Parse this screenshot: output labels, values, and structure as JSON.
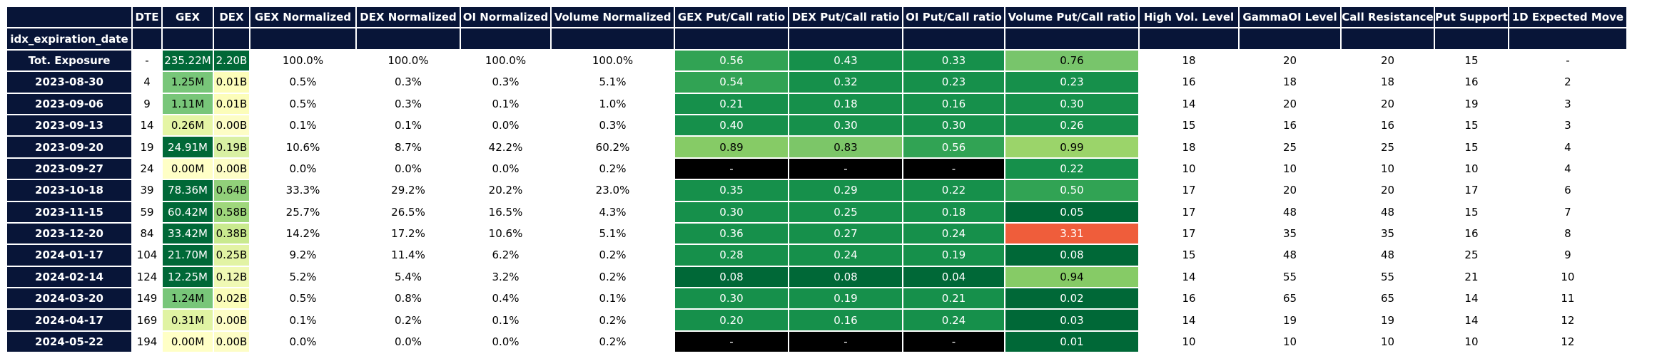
{
  "index_label": "idx_expiration_date",
  "columns": [
    "DTE",
    "GEX",
    "DEX",
    "GEX Normalized",
    "DEX Normalized",
    "OI Normalized",
    "Volume Normalized",
    "GEX Put/Call ratio",
    "DEX Put/Call ratio",
    "OI Put/Call ratio",
    "Volume Put/Call ratio",
    "High Vol. Level",
    "GammaOI Level",
    "Call Resistance",
    "Put Support",
    "1D Expected Move"
  ],
  "rows": [
    {
      "label": "Tot. Exposure",
      "cells": [
        "-",
        "235.22M",
        "2.20B",
        "100.0%",
        "100.0%",
        "100.0%",
        "100.0%",
        "0.56",
        "0.43",
        "0.33",
        "0.76",
        "18",
        "20",
        "20",
        "15",
        "-"
      ],
      "bg": [
        "#ffffff",
        "#006837",
        "#006837",
        "#ffffff",
        "#ffffff",
        "#ffffff",
        "#ffffff",
        "#31a354",
        "#16904b",
        "#16904b",
        "#78c56b",
        "#ffffff",
        "#ffffff",
        "#ffffff",
        "#ffffff",
        "#ffffff"
      ]
    },
    {
      "label": "2023-08-30",
      "cells": [
        "4",
        "1.25M",
        "0.01B",
        "0.5%",
        "0.3%",
        "0.3%",
        "5.1%",
        "0.54",
        "0.32",
        "0.23",
        "0.23",
        "16",
        "18",
        "18",
        "16",
        "2"
      ],
      "bg": [
        "#ffffff",
        "#78c679",
        "#fcfdba",
        "#ffffff",
        "#ffffff",
        "#ffffff",
        "#ffffff",
        "#31a354",
        "#16904b",
        "#16904b",
        "#16904b",
        "#ffffff",
        "#ffffff",
        "#ffffff",
        "#ffffff",
        "#ffffff"
      ]
    },
    {
      "label": "2023-09-06",
      "cells": [
        "9",
        "1.11M",
        "0.01B",
        "0.5%",
        "0.3%",
        "0.1%",
        "1.0%",
        "0.21",
        "0.18",
        "0.16",
        "0.30",
        "14",
        "20",
        "20",
        "19",
        "3"
      ],
      "bg": [
        "#ffffff",
        "#78c679",
        "#fcfdba",
        "#ffffff",
        "#ffffff",
        "#ffffff",
        "#ffffff",
        "#16904b",
        "#16904b",
        "#16904b",
        "#16904b",
        "#ffffff",
        "#ffffff",
        "#ffffff",
        "#ffffff",
        "#ffffff"
      ]
    },
    {
      "label": "2023-09-13",
      "cells": [
        "14",
        "0.26M",
        "0.00B",
        "0.1%",
        "0.1%",
        "0.0%",
        "0.3%",
        "0.40",
        "0.30",
        "0.30",
        "0.26",
        "15",
        "16",
        "16",
        "15",
        "3"
      ],
      "bg": [
        "#ffffff",
        "#e5f5a5",
        "#fdfdc6",
        "#ffffff",
        "#ffffff",
        "#ffffff",
        "#ffffff",
        "#16904b",
        "#16904b",
        "#16904b",
        "#16904b",
        "#ffffff",
        "#ffffff",
        "#ffffff",
        "#ffffff",
        "#ffffff"
      ]
    },
    {
      "label": "2023-09-20",
      "cells": [
        "19",
        "24.91M",
        "0.19B",
        "10.6%",
        "8.7%",
        "42.2%",
        "60.2%",
        "0.89",
        "0.83",
        "0.56",
        "0.99",
        "18",
        "25",
        "25",
        "15",
        "4"
      ],
      "bg": [
        "#ffffff",
        "#006837",
        "#d9f0a3",
        "#ffffff",
        "#ffffff",
        "#ffffff",
        "#ffffff",
        "#86cb66",
        "#7cc668",
        "#31a354",
        "#9bd46a",
        "#ffffff",
        "#ffffff",
        "#ffffff",
        "#ffffff",
        "#ffffff"
      ]
    },
    {
      "label": "2023-09-27",
      "cells": [
        "24",
        "0.00M",
        "0.00B",
        "0.0%",
        "0.0%",
        "0.0%",
        "0.2%",
        "-",
        "-",
        "-",
        "0.22",
        "10",
        "10",
        "10",
        "10",
        "4"
      ],
      "bg": [
        "#ffffff",
        "#ffffc6",
        "#fdfdc6",
        "#ffffff",
        "#ffffff",
        "#ffffff",
        "#ffffff",
        "#000000",
        "#000000",
        "#000000",
        "#16904b",
        "#ffffff",
        "#ffffff",
        "#ffffff",
        "#ffffff",
        "#ffffff"
      ]
    },
    {
      "label": "2023-10-18",
      "cells": [
        "39",
        "78.36M",
        "0.64B",
        "33.3%",
        "29.2%",
        "20.2%",
        "23.0%",
        "0.35",
        "0.29",
        "0.22",
        "0.50",
        "17",
        "20",
        "20",
        "17",
        "6"
      ],
      "bg": [
        "#ffffff",
        "#006837",
        "#91d07a",
        "#ffffff",
        "#ffffff",
        "#ffffff",
        "#ffffff",
        "#16904b",
        "#16904b",
        "#16904b",
        "#31a354",
        "#ffffff",
        "#ffffff",
        "#ffffff",
        "#ffffff",
        "#ffffff"
      ]
    },
    {
      "label": "2023-11-15",
      "cells": [
        "59",
        "60.42M",
        "0.58B",
        "25.7%",
        "26.5%",
        "16.5%",
        "4.3%",
        "0.30",
        "0.25",
        "0.18",
        "0.05",
        "17",
        "48",
        "48",
        "15",
        "7"
      ],
      "bg": [
        "#ffffff",
        "#006837",
        "#9fd77c",
        "#ffffff",
        "#ffffff",
        "#ffffff",
        "#ffffff",
        "#16904b",
        "#16904b",
        "#16904b",
        "#006837",
        "#ffffff",
        "#ffffff",
        "#ffffff",
        "#ffffff",
        "#ffffff"
      ]
    },
    {
      "label": "2023-12-20",
      "cells": [
        "84",
        "33.42M",
        "0.38B",
        "14.2%",
        "17.2%",
        "10.6%",
        "5.1%",
        "0.36",
        "0.27",
        "0.24",
        "3.31",
        "17",
        "35",
        "35",
        "16",
        "8"
      ],
      "bg": [
        "#ffffff",
        "#006837",
        "#c9ea8f",
        "#ffffff",
        "#ffffff",
        "#ffffff",
        "#ffffff",
        "#16904b",
        "#16904b",
        "#16904b",
        "#ef5d3b",
        "#ffffff",
        "#ffffff",
        "#ffffff",
        "#ffffff",
        "#ffffff"
      ]
    },
    {
      "label": "2024-01-17",
      "cells": [
        "104",
        "21.70M",
        "0.25B",
        "9.2%",
        "11.4%",
        "6.2%",
        "0.2%",
        "0.28",
        "0.24",
        "0.19",
        "0.08",
        "15",
        "48",
        "48",
        "25",
        "9"
      ],
      "bg": [
        "#ffffff",
        "#006837",
        "#e2f3a4",
        "#ffffff",
        "#ffffff",
        "#ffffff",
        "#ffffff",
        "#16904b",
        "#16904b",
        "#16904b",
        "#006837",
        "#ffffff",
        "#ffffff",
        "#ffffff",
        "#ffffff",
        "#ffffff"
      ]
    },
    {
      "label": "2024-02-14",
      "cells": [
        "124",
        "12.25M",
        "0.12B",
        "5.2%",
        "5.4%",
        "3.2%",
        "0.2%",
        "0.08",
        "0.08",
        "0.04",
        "0.94",
        "14",
        "55",
        "55",
        "21",
        "10"
      ],
      "bg": [
        "#ffffff",
        "#006837",
        "#f0f9b4",
        "#ffffff",
        "#ffffff",
        "#ffffff",
        "#ffffff",
        "#006837",
        "#006837",
        "#006837",
        "#86cb66",
        "#ffffff",
        "#ffffff",
        "#ffffff",
        "#ffffff",
        "#ffffff"
      ]
    },
    {
      "label": "2024-03-20",
      "cells": [
        "149",
        "1.24M",
        "0.02B",
        "0.5%",
        "0.8%",
        "0.4%",
        "0.1%",
        "0.30",
        "0.19",
        "0.21",
        "0.02",
        "16",
        "65",
        "65",
        "14",
        "11"
      ],
      "bg": [
        "#ffffff",
        "#78c679",
        "#fbfdb9",
        "#ffffff",
        "#ffffff",
        "#ffffff",
        "#ffffff",
        "#16904b",
        "#16904b",
        "#16904b",
        "#006837",
        "#ffffff",
        "#ffffff",
        "#ffffff",
        "#ffffff",
        "#ffffff"
      ]
    },
    {
      "label": "2024-04-17",
      "cells": [
        "169",
        "0.31M",
        "0.00B",
        "0.1%",
        "0.2%",
        "0.1%",
        "0.2%",
        "0.20",
        "0.16",
        "0.24",
        "0.03",
        "14",
        "19",
        "19",
        "14",
        "12"
      ],
      "bg": [
        "#ffffff",
        "#e0f3a3",
        "#fdfdc6",
        "#ffffff",
        "#ffffff",
        "#ffffff",
        "#ffffff",
        "#16904b",
        "#16904b",
        "#16904b",
        "#006837",
        "#ffffff",
        "#ffffff",
        "#ffffff",
        "#ffffff",
        "#ffffff"
      ]
    },
    {
      "label": "2024-05-22",
      "cells": [
        "194",
        "0.00M",
        "0.00B",
        "0.0%",
        "0.0%",
        "0.0%",
        "0.2%",
        "-",
        "-",
        "-",
        "0.01",
        "10",
        "10",
        "10",
        "10",
        "12"
      ],
      "bg": [
        "#ffffff",
        "#ffffc6",
        "#fdfdc6",
        "#ffffff",
        "#ffffff",
        "#ffffff",
        "#ffffff",
        "#000000",
        "#000000",
        "#000000",
        "#006837",
        "#ffffff",
        "#ffffff",
        "#ffffff",
        "#ffffff",
        "#ffffff"
      ]
    }
  ]
}
